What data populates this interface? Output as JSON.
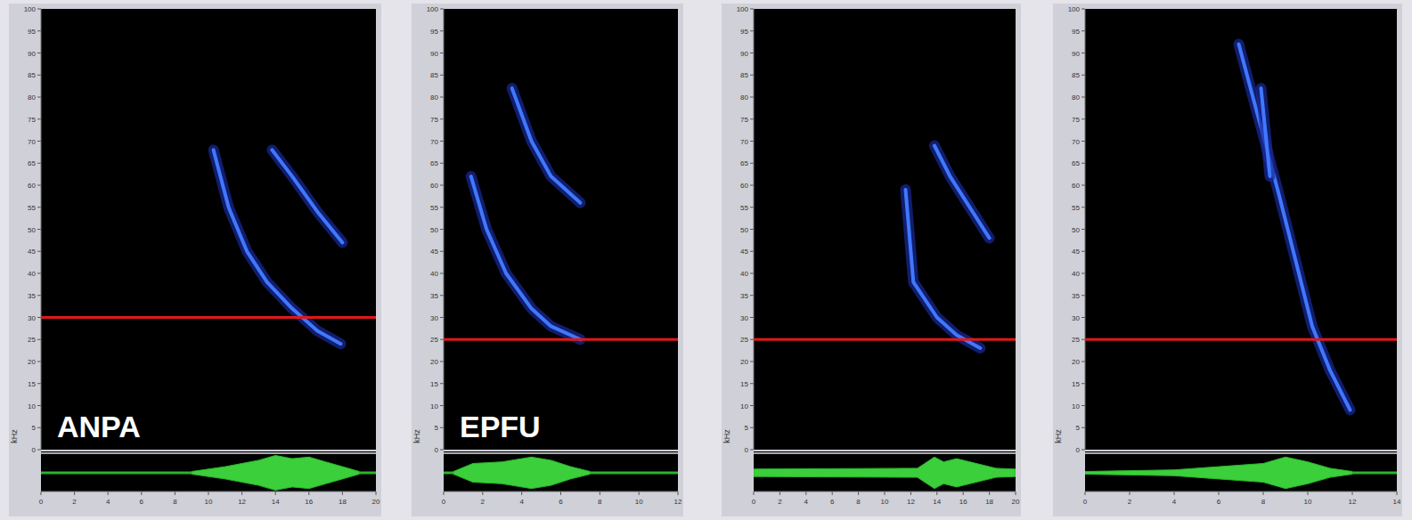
{
  "chart_data": [
    {
      "type": "spectrogram",
      "label": "ANPA",
      "y_label": "kHz",
      "xlim": [
        0,
        20
      ],
      "xticks": [
        0,
        2,
        4,
        6,
        8,
        10,
        12,
        14,
        16,
        18,
        20
      ],
      "ylim": [
        0,
        100
      ],
      "yticks": [
        0,
        5,
        10,
        15,
        20,
        25,
        30,
        35,
        40,
        45,
        50,
        55,
        60,
        65,
        70,
        75,
        80,
        85,
        90,
        95,
        100
      ],
      "threshold": 30,
      "calls": [
        {
          "x": [
            10.3,
            11.2,
            12.3,
            13.5,
            15,
            16.5,
            17.9
          ],
          "values": [
            68,
            55,
            45,
            38,
            32,
            27,
            24
          ]
        },
        {
          "x": [
            13.8,
            15,
            16.5,
            18
          ],
          "values": [
            68,
            62,
            54,
            47
          ]
        }
      ],
      "envelope": {
        "x": [
          9,
          11,
          13,
          14,
          15,
          16,
          17,
          18,
          19
        ],
        "values": [
          0,
          0.3,
          0.7,
          1,
          0.8,
          0.9,
          0.6,
          0.3,
          0
        ]
      }
    },
    {
      "type": "spectrogram",
      "label": "EPFU",
      "y_label": "kHz",
      "xlim": [
        0,
        12
      ],
      "xticks": [
        0,
        2,
        4,
        6,
        8,
        10,
        12
      ],
      "ylim": [
        0,
        100
      ],
      "yticks": [
        0,
        5,
        10,
        15,
        20,
        25,
        30,
        35,
        40,
        45,
        50,
        55,
        60,
        65,
        70,
        75,
        80,
        85,
        90,
        95,
        100
      ],
      "threshold": 25,
      "calls": [
        {
          "x": [
            1.4,
            2.2,
            3.2,
            4.5,
            5.5,
            7
          ],
          "values": [
            62,
            50,
            40,
            32,
            28,
            25
          ]
        },
        {
          "x": [
            3.5,
            4.5,
            5.5,
            7
          ],
          "values": [
            82,
            70,
            62,
            56
          ]
        }
      ],
      "envelope": {
        "x": [
          0.5,
          1.5,
          3,
          4.5,
          5.5,
          6.5,
          7.5
        ],
        "values": [
          0,
          0.5,
          0.6,
          0.9,
          0.7,
          0.3,
          0
        ]
      }
    },
    {
      "type": "spectrogram",
      "y_label": "kHz",
      "xlim": [
        0,
        20
      ],
      "xticks": [
        0,
        2,
        4,
        6,
        8,
        10,
        12,
        14,
        16,
        18,
        20
      ],
      "ylim": [
        0,
        100
      ],
      "yticks": [
        0,
        5,
        10,
        15,
        20,
        25,
        30,
        35,
        40,
        45,
        50,
        55,
        60,
        65,
        70,
        75,
        80,
        85,
        90,
        95,
        100
      ],
      "threshold": 25,
      "calls": [
        {
          "x": [
            11.6,
            12.2,
            14,
            15.5,
            17.3
          ],
          "values": [
            59,
            38,
            30,
            26,
            23
          ]
        },
        {
          "x": [
            13.8,
            15,
            16.5,
            18
          ],
          "values": [
            69,
            62,
            55,
            48
          ]
        }
      ],
      "envelope": {
        "x": [
          0,
          12.5,
          13.8,
          14.5,
          15.5,
          17,
          18.5,
          20
        ],
        "values": [
          0.15,
          0.2,
          0.9,
          0.6,
          0.8,
          0.5,
          0.2,
          0.15
        ]
      }
    },
    {
      "type": "spectrogram",
      "y_label": "kHz",
      "xlim": [
        0,
        14
      ],
      "xticks": [
        0,
        2,
        4,
        6,
        8,
        10,
        12,
        14
      ],
      "ylim": [
        0,
        100
      ],
      "yticks": [
        0,
        5,
        10,
        15,
        20,
        25,
        30,
        35,
        40,
        45,
        50,
        55,
        60,
        65,
        70,
        75,
        80,
        85,
        90,
        95,
        100
      ],
      "threshold": 25,
      "calls": [
        {
          "x": [
            6.9,
            7.8,
            8.7,
            9.5,
            10.2,
            11,
            11.9
          ],
          "values": [
            92,
            75,
            58,
            42,
            28,
            18,
            9
          ]
        },
        {
          "x": [
            7.9,
            8.1,
            8.3
          ],
          "values": [
            82,
            72,
            62
          ]
        }
      ],
      "envelope": {
        "x": [
          0,
          4,
          6,
          8,
          9,
          10,
          11,
          12
        ],
        "values": [
          0,
          0.1,
          0.3,
          0.5,
          0.9,
          0.6,
          0.2,
          0
        ]
      }
    }
  ]
}
